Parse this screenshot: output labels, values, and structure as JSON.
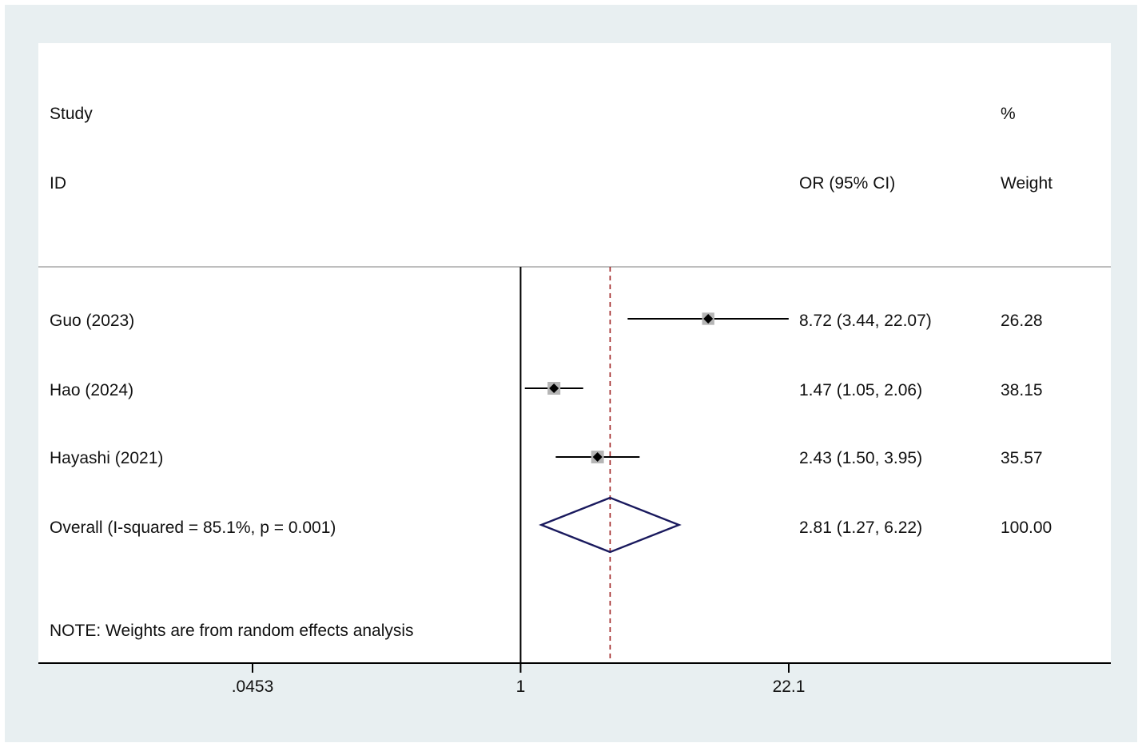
{
  "chart_data": {
    "type": "forest",
    "headers": {
      "study_line1": "Study",
      "study_line2": "ID",
      "effect_line2": "OR (95% CI)",
      "weight_line1": "%",
      "weight_line2": "Weight"
    },
    "studies": [
      {
        "label": "Guo (2023)",
        "or": 8.72,
        "lower": 3.44,
        "upper": 22.07,
        "weight": 26.28,
        "ci_text": "8.72 (3.44, 22.07)",
        "weight_text": "26.28"
      },
      {
        "label": "Hao (2024)",
        "or": 1.47,
        "lower": 1.05,
        "upper": 2.06,
        "weight": 38.15,
        "ci_text": "1.47 (1.05, 2.06)",
        "weight_text": "38.15"
      },
      {
        "label": "Hayashi (2021)",
        "or": 2.43,
        "lower": 1.5,
        "upper": 3.95,
        "weight": 35.57,
        "ci_text": "2.43 (1.50, 3.95)",
        "weight_text": "35.57"
      }
    ],
    "overall": {
      "label": "Overall  (I-squared = 85.1%, p = 0.001)",
      "or": 2.81,
      "lower": 1.27,
      "upper": 6.22,
      "ci_text": "2.81 (1.27, 6.22)",
      "weight_text": "100.00"
    },
    "note": "NOTE: Weights are from random effects analysis",
    "x_axis": {
      "scale": "log",
      "range": [
        0.0453,
        22.1
      ],
      "ticks": [
        {
          "value": 0.0453,
          "label": ".0453"
        },
        {
          "value": 1,
          "label": "1"
        },
        {
          "value": 22.1,
          "label": "22.1"
        }
      ]
    },
    "null_line": 1,
    "colors": {
      "frame": "#e8eff1",
      "plot_bg": "#ffffff",
      "ci_line": "#000000",
      "marker": "#000000",
      "weight_box": "#b5b5b5",
      "overall_diamond": "#1a1a5e",
      "overall_line": "#9b1b1b",
      "divider": "#a8a8a8"
    }
  }
}
